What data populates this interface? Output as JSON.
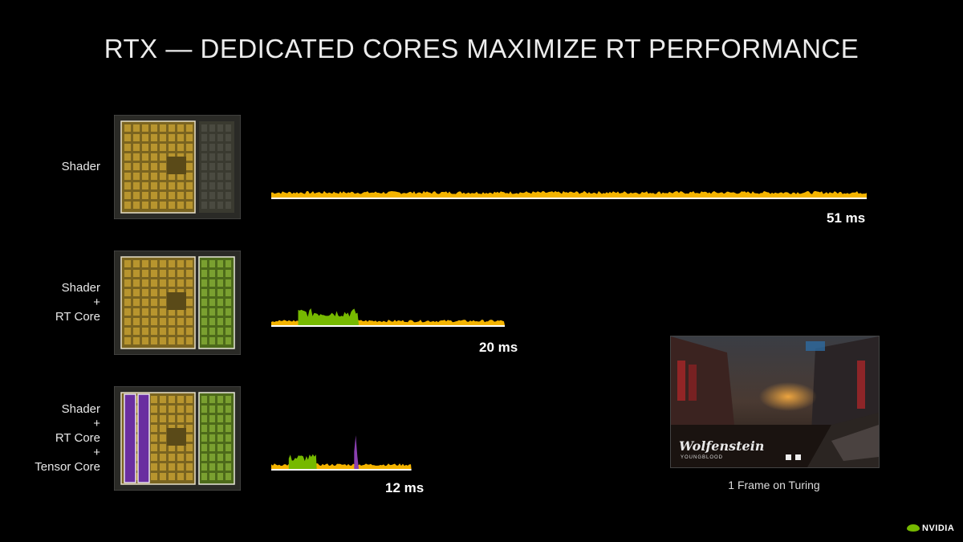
{
  "slide": {
    "title": "RTX — DEDICATED CORES MAXIMIZE RT PERFORMANCE",
    "brand": "NVIDIA",
    "caption": "1 Frame on Turing",
    "game_logo": "Wolfenstein",
    "game_logo_sub": "YOUNGBLOOD"
  },
  "colors": {
    "shader": "#f4b400",
    "rt_core": "#76b900",
    "tensor_core": "#8a3fb0",
    "background": "#000000",
    "brand_green": "#76b900"
  },
  "chart_data": {
    "type": "area",
    "title": "RTX — DEDICATED CORES MAXIMIZE RT PERFORMANCE",
    "x_unit": "ms",
    "series_colors": {
      "Shader": "#f4b400",
      "RT Core": "#76b900",
      "Tensor Core": "#8a3fb0"
    },
    "rows": [
      {
        "label_lines": [
          "Shader"
        ],
        "frame_time": "51 ms",
        "frame_ms": 51,
        "segments": [
          {
            "core": "Shader",
            "start_ms": 0,
            "end_ms": 51,
            "level": 0.35
          }
        ]
      },
      {
        "label_lines": [
          "Shader",
          "+",
          "RT Core"
        ],
        "frame_time": "20 ms",
        "frame_ms": 20,
        "segments": [
          {
            "core": "Shader",
            "start_ms": 0,
            "end_ms": 20,
            "level": 0.3
          },
          {
            "core": "RT Core",
            "start_ms": 2.3,
            "end_ms": 7.5,
            "level": 0.85
          }
        ]
      },
      {
        "label_lines": [
          "Shader",
          "+",
          "RT Core",
          "+",
          "Tensor Core"
        ],
        "frame_time": "12 ms",
        "frame_ms": 12,
        "segments": [
          {
            "core": "Shader",
            "start_ms": 0,
            "end_ms": 12,
            "level": 0.3
          },
          {
            "core": "RT Core",
            "start_ms": 1.5,
            "end_ms": 3.9,
            "level": 0.75
          },
          {
            "core": "Tensor Core",
            "start_ms": 7.1,
            "end_ms": 7.5,
            "level": 1.65
          }
        ]
      }
    ]
  }
}
